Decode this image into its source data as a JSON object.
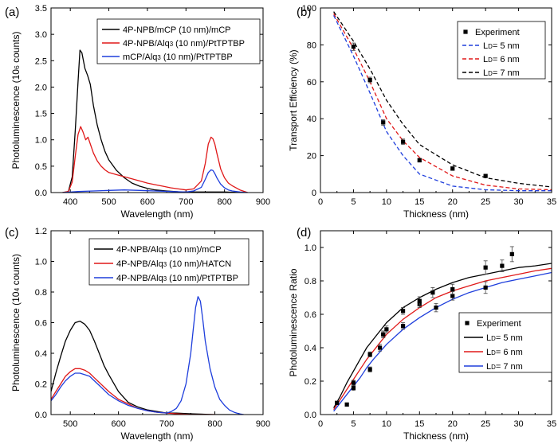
{
  "chart_data": [
    {
      "panel": "(a)",
      "type": "line",
      "xlabel": "Wavelength (nm)",
      "ylabel": [
        "Photoluminescence (10",
        "6",
        " counts)"
      ],
      "xlim": [
        350,
        900
      ],
      "ylim": [
        0,
        3.5
      ],
      "xticks": [
        400,
        500,
        600,
        700,
        800,
        900
      ],
      "yticks": [
        0.0,
        0.5,
        1.0,
        1.5,
        2.0,
        2.5,
        3.0,
        3.5
      ],
      "ytick_labels": [
        "0.0",
        "0.5",
        "1.0",
        "1.5",
        "2.0",
        "2.5",
        "3.0",
        "3.5"
      ],
      "legend": "top-right",
      "series": [
        {
          "name": "4P-NPB/mCP (10 nm)/mCP",
          "label": [
            "4P-NPB/mCP (10 nm)/mCP"
          ],
          "color": "#000000",
          "x": [
            380,
            395,
            405,
            413,
            420,
            425,
            430,
            438,
            445,
            452,
            460,
            470,
            480,
            490,
            500,
            520,
            540,
            560,
            580,
            600,
            620,
            650,
            680,
            720,
            760,
            800,
            850
          ],
          "y": [
            0,
            0.02,
            0.3,
            1.2,
            2.1,
            2.7,
            2.65,
            2.35,
            2.22,
            2.05,
            1.65,
            1.28,
            1.0,
            0.78,
            0.62,
            0.42,
            0.28,
            0.18,
            0.12,
            0.08,
            0.05,
            0.03,
            0.015,
            0.01,
            0.01,
            0.01,
            0
          ]
        },
        {
          "name": "4P-NPB/Alq3 (10 nm)/PtTPTBP",
          "label": [
            "4P-NPB/Alq",
            "3",
            " (10 nm)/PtTPTBP"
          ],
          "color": "#e01818",
          "x": [
            380,
            395,
            405,
            413,
            420,
            427,
            433,
            440,
            446,
            452,
            460,
            470,
            480,
            490,
            500,
            520,
            540,
            560,
            580,
            600,
            620,
            640,
            660,
            680,
            700,
            720,
            740,
            750,
            758,
            765,
            770,
            775,
            780,
            790,
            800,
            810,
            820,
            840,
            860
          ],
          "y": [
            0,
            0.02,
            0.2,
            0.7,
            1.1,
            1.25,
            1.15,
            1.0,
            1.05,
            0.92,
            0.75,
            0.6,
            0.5,
            0.43,
            0.38,
            0.34,
            0.3,
            0.26,
            0.22,
            0.18,
            0.15,
            0.12,
            0.09,
            0.07,
            0.05,
            0.07,
            0.22,
            0.55,
            0.92,
            1.05,
            1.02,
            0.92,
            0.75,
            0.45,
            0.28,
            0.18,
            0.13,
            0.05,
            0
          ]
        },
        {
          "name": "mCP/Alq3 (10 nm)/PtTPTBP",
          "label": [
            "mCP/Alq",
            "3",
            " (10 nm)/PtTPTBP"
          ],
          "color": "#1e3edc",
          "x": [
            380,
            420,
            460,
            500,
            540,
            580,
            620,
            660,
            700,
            720,
            740,
            750,
            758,
            765,
            770,
            775,
            780,
            790,
            800,
            810,
            820,
            840,
            860
          ],
          "y": [
            0,
            0.02,
            0.03,
            0.04,
            0.05,
            0.04,
            0.03,
            0.02,
            0.01,
            0.03,
            0.1,
            0.25,
            0.38,
            0.43,
            0.42,
            0.36,
            0.28,
            0.16,
            0.09,
            0.05,
            0.03,
            0.01,
            0
          ]
        }
      ]
    },
    {
      "panel": "(b)",
      "type": "scatter",
      "xlabel": "Thickness (nm)",
      "ylabel": "Transport Efficiency (%)",
      "xlim": [
        0,
        35
      ],
      "ylim": [
        0,
        100
      ],
      "xticks": [
        0,
        5,
        10,
        15,
        20,
        25,
        30,
        35
      ],
      "yticks": [
        0,
        20,
        40,
        60,
        80,
        100
      ],
      "ytick_labels": [
        "0",
        "20",
        "40",
        "60",
        "80",
        "100"
      ],
      "legend": "top-right",
      "experiment": {
        "name": "Experiment",
        "label": [
          "Experiment"
        ],
        "color": "#000000",
        "x": [
          5,
          7.5,
          9.5,
          12.5,
          15,
          20,
          25
        ],
        "y": [
          79,
          61,
          38,
          27.5,
          17.5,
          13,
          9
        ],
        "err": [
          2,
          1.5,
          1.5,
          1.5,
          1,
          1,
          0.5
        ]
      },
      "series": [
        {
          "name": "LD= 5 nm",
          "label": [
            "L",
            "D",
            "= 5 nm"
          ],
          "color": "#1e3edc",
          "dashed": true,
          "x": [
            2,
            5,
            7.5,
            10,
            12.5,
            15,
            20,
            25,
            30,
            35
          ],
          "y": [
            96,
            74,
            54,
            33,
            20,
            10,
            3.5,
            1.5,
            1,
            1
          ]
        },
        {
          "name": "LD= 6 nm",
          "label": [
            "L",
            "D",
            "= 6 nm"
          ],
          "color": "#e01818",
          "dashed": true,
          "x": [
            2,
            5,
            7.5,
            10,
            12.5,
            15,
            20,
            25,
            30,
            35
          ],
          "y": [
            97,
            78,
            60,
            40,
            28,
            19,
            9,
            4,
            2,
            1.5
          ]
        },
        {
          "name": "LD= 7 nm",
          "label": [
            "L",
            "D",
            "= 7 nm"
          ],
          "color": "#000000",
          "dashed": true,
          "x": [
            2,
            5,
            7.5,
            10,
            12.5,
            15,
            20,
            25,
            30,
            35
          ],
          "y": [
            98,
            82,
            67,
            50,
            37,
            26,
            15,
            8,
            5,
            3
          ]
        }
      ]
    },
    {
      "panel": "(c)",
      "type": "line",
      "xlabel": "Wavelength (nm)",
      "ylabel": [
        "Photoluminescence (10",
        "4",
        " counts)"
      ],
      "xlim": [
        460,
        900
      ],
      "ylim": [
        0,
        1.2
      ],
      "xticks": [
        500,
        600,
        700,
        800,
        900
      ],
      "yticks": [
        0.0,
        0.2,
        0.4,
        0.6,
        0.8,
        1.0,
        1.2
      ],
      "ytick_labels": [
        "0.0",
        "0.2",
        "0.4",
        "0.6",
        "0.8",
        "1.0",
        "1.2"
      ],
      "legend": "top-left",
      "series": [
        {
          "name": "4P-NPB/Alq3 (10 nm)/mCP",
          "label": [
            "4P-NPB/Alq",
            "3",
            " (10 nm)/mCP"
          ],
          "color": "#000000",
          "x": [
            460,
            470,
            480,
            490,
            500,
            510,
            520,
            530,
            540,
            550,
            560,
            570,
            580,
            600,
            620,
            640,
            660,
            680,
            700,
            720,
            750,
            800,
            850
          ],
          "y": [
            0.15,
            0.27,
            0.38,
            0.48,
            0.55,
            0.6,
            0.61,
            0.59,
            0.55,
            0.48,
            0.4,
            0.32,
            0.26,
            0.15,
            0.08,
            0.05,
            0.03,
            0.02,
            0.01,
            0.01,
            0.005,
            0,
            0
          ]
        },
        {
          "name": "4P-NPB/Alq3 (10 nm)/HATCN",
          "label": [
            "4P-NPB/Alq",
            "3",
            " (10 nm)/HATCN"
          ],
          "color": "#e01818",
          "x": [
            460,
            470,
            480,
            490,
            500,
            510,
            520,
            530,
            540,
            550,
            560,
            570,
            580,
            600,
            620,
            640,
            660,
            680,
            700,
            720,
            750,
            800
          ],
          "y": [
            0.1,
            0.15,
            0.2,
            0.25,
            0.28,
            0.3,
            0.3,
            0.29,
            0.27,
            0.24,
            0.21,
            0.18,
            0.15,
            0.1,
            0.07,
            0.04,
            0.025,
            0.015,
            0.01,
            0.005,
            0,
            0
          ]
        },
        {
          "name": "4P-NPB/Alq3 (10 nm)/PtTPTBP",
          "label": [
            "4P-NPB/Alq",
            "3",
            " (10 nm)/PtTPTBP"
          ],
          "color": "#1e3edc",
          "x": [
            460,
            470,
            480,
            490,
            500,
            510,
            520,
            530,
            540,
            550,
            560,
            570,
            580,
            600,
            620,
            640,
            660,
            680,
            700,
            710,
            720,
            730,
            740,
            750,
            755,
            760,
            765,
            770,
            775,
            780,
            790,
            800,
            810,
            820,
            830,
            840,
            850,
            860
          ],
          "y": [
            0.09,
            0.13,
            0.18,
            0.22,
            0.25,
            0.27,
            0.27,
            0.26,
            0.25,
            0.22,
            0.19,
            0.16,
            0.13,
            0.09,
            0.06,
            0.04,
            0.025,
            0.015,
            0.01,
            0.02,
            0.04,
            0.09,
            0.2,
            0.4,
            0.55,
            0.7,
            0.77,
            0.74,
            0.62,
            0.48,
            0.3,
            0.18,
            0.1,
            0.06,
            0.03,
            0.015,
            0.005,
            0
          ]
        }
      ]
    },
    {
      "panel": "(d)",
      "type": "scatter",
      "xlabel": "Thickness (nm)",
      "ylabel": "Photoluminescence Ratio",
      "xlim": [
        0,
        35
      ],
      "ylim": [
        0,
        1.1
      ],
      "xticks": [
        0,
        5,
        10,
        15,
        20,
        25,
        30,
        35
      ],
      "yticks": [
        0.0,
        0.2,
        0.4,
        0.6,
        0.8,
        1.0
      ],
      "ytick_labels": [
        "0.0",
        "0.2",
        "0.4",
        "0.6",
        "0.8",
        "1.0"
      ],
      "legend": "bottom-right",
      "experiment": {
        "name": "Experiment",
        "label": [
          "Experiment"
        ],
        "color": "#000000",
        "x": [
          2.5,
          4,
          5,
          5,
          7.5,
          7.5,
          9,
          9.5,
          9.5,
          10,
          12.5,
          12.5,
          15,
          15,
          17,
          17.5,
          20,
          20,
          25,
          25,
          27.5,
          29
        ],
        "y": [
          0.07,
          0.06,
          0.16,
          0.19,
          0.27,
          0.36,
          0.4,
          0.48,
          0.48,
          0.51,
          0.53,
          0.62,
          0.66,
          0.68,
          0.73,
          0.64,
          0.71,
          0.75,
          0.76,
          0.88,
          0.89,
          0.96
        ],
        "err": [
          0.01,
          0.01,
          0.015,
          0.015,
          0.015,
          0.015,
          0.02,
          0.02,
          0.02,
          0.02,
          0.02,
          0.02,
          0.02,
          0.025,
          0.03,
          0.025,
          0.025,
          0.03,
          0.035,
          0.04,
          0.035,
          0.045
        ]
      },
      "series": [
        {
          "name": "LD= 5 nm",
          "label": [
            "L",
            "D",
            "= 5 nm"
          ],
          "color": "#000000",
          "x": [
            2,
            3,
            4,
            5,
            6,
            7,
            8,
            10,
            12.5,
            15,
            17.5,
            20,
            22.5,
            25,
            27.5,
            30,
            32.5,
            35
          ],
          "y": [
            0.04,
            0.11,
            0.19,
            0.26,
            0.33,
            0.4,
            0.45,
            0.55,
            0.64,
            0.7,
            0.75,
            0.79,
            0.82,
            0.84,
            0.86,
            0.88,
            0.89,
            0.905
          ]
        },
        {
          "name": "LD= 6 nm",
          "label": [
            "L",
            "D",
            "= 6 nm"
          ],
          "color": "#e01818",
          "x": [
            2,
            3,
            4,
            5,
            6,
            7,
            8,
            10,
            12.5,
            15,
            17.5,
            20,
            22.5,
            25,
            27.5,
            30,
            32.5,
            35
          ],
          "y": [
            0.03,
            0.09,
            0.15,
            0.21,
            0.27,
            0.33,
            0.38,
            0.48,
            0.57,
            0.64,
            0.7,
            0.74,
            0.77,
            0.8,
            0.82,
            0.84,
            0.86,
            0.875
          ]
        },
        {
          "name": "LD= 7 nm",
          "label": [
            "L",
            "D",
            "= 7 nm"
          ],
          "color": "#1e3edc",
          "x": [
            2,
            3,
            4,
            5,
            6,
            7,
            8,
            10,
            12.5,
            15,
            17.5,
            20,
            22.5,
            25,
            27.5,
            30,
            32.5,
            35
          ],
          "y": [
            0.02,
            0.07,
            0.12,
            0.17,
            0.22,
            0.28,
            0.33,
            0.42,
            0.51,
            0.58,
            0.64,
            0.69,
            0.73,
            0.76,
            0.79,
            0.81,
            0.83,
            0.85
          ]
        }
      ]
    }
  ]
}
